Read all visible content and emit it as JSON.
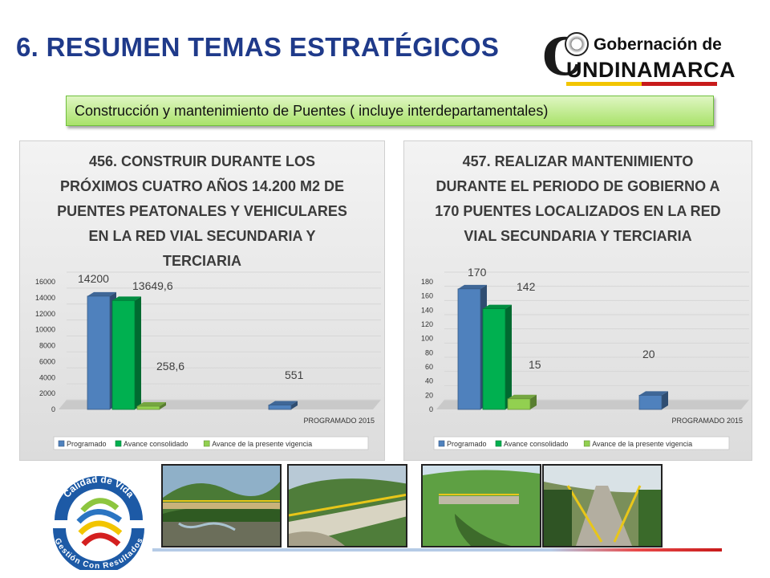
{
  "page": {
    "title": "6. RESUMEN TEMAS ESTRATÉGICOS",
    "banner": "Construcción y mantenimiento de Puentes ( incluye interdepartamentales)"
  },
  "logo": {
    "big_letter": "C",
    "line1": "Gobernación de",
    "line2": "UNDINAMARCA"
  },
  "quality_logo": {
    "top_text": "Calidad de Vida",
    "bottom_text": "Gestión Con Resultados"
  },
  "chart_data": [
    {
      "type": "bar",
      "title": "456. CONSTRUIR DURANTE LOS PRÓXIMOS CUATRO AÑOS 14.200 M2 DE PUENTES PEATONALES Y VEHICULARES EN LA RED VIAL SECUNDARIA Y TERCIARIA",
      "categories": [
        "",
        "PROGRAMADO 2015"
      ],
      "series": [
        {
          "name": "Programado",
          "values": [
            14200,
            551
          ],
          "labels": [
            "14200",
            "551"
          ],
          "color": "#4F81BD"
        },
        {
          "name": "Avance consolidado",
          "values": [
            13649.6,
            null
          ],
          "labels": [
            "13649,6",
            ""
          ],
          "color": "#00B050"
        },
        {
          "name": "Avance de la presente vigencia",
          "values": [
            258.6,
            null
          ],
          "labels": [
            "258,6",
            ""
          ],
          "color": "#92D050"
        }
      ],
      "yticks": [
        "0",
        "2000",
        "4000",
        "6000",
        "8000",
        "10000",
        "12000",
        "14000",
        "16000"
      ],
      "ylim": [
        0,
        16000
      ],
      "legend_position": "bottom",
      "grid": true
    },
    {
      "type": "bar",
      "title": "457. REALIZAR MANTENIMIENTO DURANTE EL PERIODO DE GOBIERNO A 170 PUENTES LOCALIZADOS EN LA RED VIAL SECUNDARIA Y TERCIARIA",
      "categories": [
        "",
        "PROGRAMADO 2015"
      ],
      "series": [
        {
          "name": "Programado",
          "values": [
            170,
            20
          ],
          "labels": [
            "170",
            "20"
          ],
          "color": "#4F81BD"
        },
        {
          "name": "Avance consolidado",
          "values": [
            142,
            null
          ],
          "labels": [
            "142",
            ""
          ],
          "color": "#00B050"
        },
        {
          "name": "Avance de la presente vigencia",
          "values": [
            15,
            null
          ],
          "labels": [
            "15",
            ""
          ],
          "color": "#92D050"
        }
      ],
      "yticks": [
        "0",
        "20",
        "40",
        "60",
        "80",
        "100",
        "120",
        "140",
        "160",
        "180"
      ],
      "ylim": [
        0,
        180
      ],
      "legend_position": "bottom",
      "grid": true
    }
  ]
}
